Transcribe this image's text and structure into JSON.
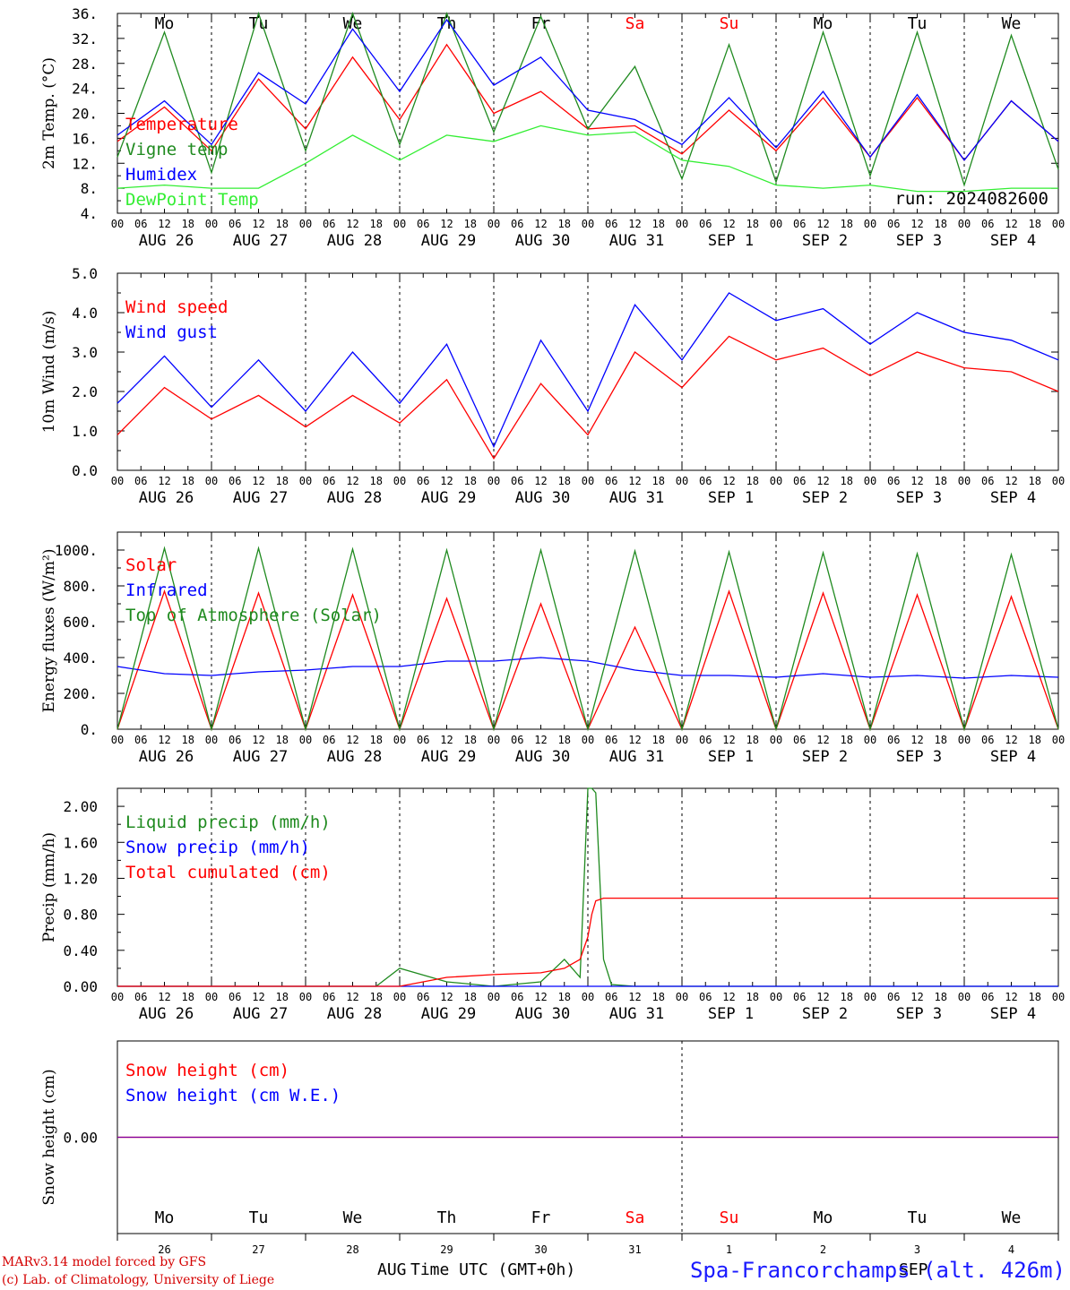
{
  "x_axis": {
    "hour_ticks": [
      "00",
      "06",
      "12",
      "18"
    ],
    "final_tick": "00",
    "date_labels": [
      "AUG 26",
      "AUG 27",
      "AUG 28",
      "AUG 29",
      "AUG 30",
      "AUG 31",
      "SEP  1",
      "SEP  2",
      "SEP  3",
      "SEP  4"
    ],
    "weekdays": [
      "Mo",
      "Tu",
      "We",
      "Th",
      "Fr",
      "Sa",
      "Su",
      "Mo",
      "Tu",
      "We"
    ],
    "weekday_colors": [
      "#000000",
      "#000000",
      "#000000",
      "#000000",
      "#000000",
      "#ff0000",
      "#ff0000",
      "#000000",
      "#000000",
      "#000000"
    ],
    "day_numbers": [
      "26",
      "27",
      "28",
      "29",
      "30",
      "31",
      "1",
      "2",
      "3",
      "4"
    ],
    "month_marks": [
      "AUG",
      "SEP"
    ],
    "title": "Time UTC (GMT+0h)"
  },
  "footer": {
    "model_line": "MARv3.14 model forced by GFS",
    "lab_line": "(c) Lab. of Climatology, University of Liege",
    "station": "Spa-Francorchamps (alt. 426m)"
  },
  "colors": {
    "red": "#ff0000",
    "green": "#1f8a1f",
    "blue": "#0000ff",
    "lightgreen": "#33ee33",
    "purple": "#8000a0"
  },
  "chart_data": [
    {
      "type": "line",
      "ylabel": "2m Temp. (°C)",
      "ylim": [
        4,
        36
      ],
      "yticks": [
        "4.",
        "8.",
        "12.",
        "16.",
        "20.",
        "24.",
        "28.",
        "32.",
        "36."
      ],
      "run_label": "run: 2024082600",
      "x_hours": [
        0,
        12,
        24,
        36,
        48,
        60,
        72,
        84,
        96,
        108,
        120,
        132,
        144,
        156,
        168,
        180,
        192,
        204,
        216,
        228,
        240
      ],
      "series": [
        {
          "name": "Temperature",
          "color": "#ff0000",
          "values": [
            15.5,
            21,
            14,
            25.5,
            17.5,
            29,
            19,
            31,
            20,
            23.5,
            17.5,
            18,
            13.5,
            20.5,
            14,
            22.5,
            13,
            22.5,
            12.5,
            22,
            15.5
          ]
        },
        {
          "name": "Vigne temp",
          "color": "#1f8a1f",
          "values": [
            13,
            33,
            10.5,
            36,
            14,
            36,
            15,
            36,
            17,
            35.5,
            17.5,
            27.5,
            9.5,
            31,
            9,
            33,
            10,
            33,
            8.5,
            32.5,
            11
          ]
        },
        {
          "name": "Humidex",
          "color": "#0000ff",
          "values": [
            16.5,
            22,
            15,
            26.5,
            21.5,
            33.5,
            23.5,
            35,
            24.5,
            29,
            20.5,
            19,
            15,
            22.5,
            14.5,
            23.5,
            13,
            23,
            12.5,
            22,
            15.5
          ]
        },
        {
          "name": "DewPoint Temp",
          "color": "#33ee33",
          "values": [
            8,
            8.5,
            8,
            8,
            12,
            16.5,
            12.5,
            16.5,
            15.5,
            18,
            16.5,
            17,
            12.5,
            11.5,
            8.5,
            8,
            8.5,
            7.5,
            7.5,
            8,
            8
          ]
        }
      ]
    },
    {
      "type": "line",
      "ylabel": "10m Wind (m/s)",
      "ylim": [
        0,
        5
      ],
      "yticks": [
        "0.0",
        "1.0",
        "2.0",
        "3.0",
        "4.0",
        "5.0"
      ],
      "x_hours": [
        0,
        12,
        24,
        36,
        48,
        60,
        72,
        84,
        96,
        108,
        120,
        132,
        144,
        156,
        168,
        180,
        192,
        204,
        216,
        228,
        240
      ],
      "series": [
        {
          "name": "Wind speed",
          "color": "#ff0000",
          "values": [
            0.9,
            2.1,
            1.3,
            1.9,
            1.1,
            1.9,
            1.2,
            2.3,
            0.3,
            2.2,
            0.9,
            3.0,
            2.1,
            3.4,
            2.8,
            3.1,
            2.4,
            3.0,
            2.6,
            2.5,
            2.0
          ]
        },
        {
          "name": "Wind gust",
          "color": "#0000ff",
          "values": [
            1.7,
            2.9,
            1.6,
            2.8,
            1.5,
            3.0,
            1.7,
            3.2,
            0.6,
            3.3,
            1.5,
            4.2,
            2.8,
            4.5,
            3.8,
            4.1,
            3.2,
            4.0,
            3.5,
            3.3,
            2.8
          ]
        }
      ]
    },
    {
      "type": "line",
      "ylabel": "Energy fluxes (W/m²)",
      "ylim": [
        0,
        1100
      ],
      "yticks": [
        "0.",
        "200.",
        "400.",
        "600.",
        "800.",
        "1000."
      ],
      "x_hours": [
        0,
        12,
        24,
        36,
        48,
        60,
        72,
        84,
        96,
        108,
        120,
        132,
        144,
        156,
        168,
        180,
        192,
        204,
        216,
        228,
        240
      ],
      "series": [
        {
          "name": "Solar",
          "color": "#ff0000",
          "values": [
            0,
            770,
            0,
            760,
            0,
            750,
            0,
            730,
            0,
            700,
            0,
            570,
            0,
            770,
            0,
            760,
            0,
            750,
            0,
            740,
            0
          ]
        },
        {
          "name": "Infrared",
          "color": "#0000ff",
          "values": [
            350,
            310,
            300,
            320,
            330,
            350,
            350,
            380,
            380,
            400,
            380,
            330,
            300,
            300,
            290,
            310,
            290,
            300,
            285,
            300,
            290
          ]
        },
        {
          "name": "Top of Atmosphere (Solar)",
          "color": "#1f8a1f",
          "values": [
            0,
            1010,
            0,
            1010,
            0,
            1005,
            0,
            1000,
            0,
            1000,
            0,
            995,
            0,
            990,
            0,
            985,
            0,
            980,
            0,
            975,
            0
          ]
        }
      ]
    },
    {
      "type": "line",
      "ylabel": "Precip (mm/h)",
      "ylim": [
        0,
        2.2
      ],
      "yticks": [
        "0.00",
        "0.40",
        "0.80",
        "1.20",
        "1.60",
        "2.00"
      ],
      "x_hours": [
        0,
        24,
        48,
        66,
        72,
        84,
        96,
        108,
        114,
        118,
        120,
        121,
        122,
        124,
        126,
        132,
        144,
        168,
        192,
        216,
        240
      ],
      "series": [
        {
          "name": "Liquid precip (mm/h)",
          "color": "#1f8a1f",
          "values": [
            0,
            0,
            0,
            0,
            0.2,
            0.05,
            0,
            0.05,
            0.3,
            0.1,
            2.2,
            2.2,
            2.15,
            0.3,
            0.02,
            0,
            0,
            0,
            0,
            0,
            0
          ]
        },
        {
          "name": "Snow precip (mm/h)",
          "color": "#0000ff",
          "values": [
            0,
            0,
            0,
            0,
            0,
            0,
            0,
            0,
            0,
            0,
            0,
            0,
            0,
            0,
            0,
            0,
            0,
            0,
            0,
            0,
            0
          ]
        },
        {
          "name": "Total cumulated (cm)",
          "color": "#ff0000",
          "values": [
            0,
            0,
            0,
            0,
            0,
            0.1,
            0.13,
            0.15,
            0.2,
            0.3,
            0.55,
            0.8,
            0.95,
            0.98,
            0.98,
            0.98,
            0.98,
            0.98,
            0.98,
            0.98,
            0.98
          ]
        }
      ]
    },
    {
      "type": "line",
      "ylabel": "Snow height (cm)",
      "ylim": [
        -1,
        1
      ],
      "yticks": [
        "0.00"
      ],
      "x_hours": [
        0,
        240
      ],
      "series": [
        {
          "name": "Snow height (cm)",
          "color": "#ff0000",
          "values": [
            0,
            0
          ]
        },
        {
          "name": "Snow height (cm W.E.)",
          "color": "#0000ff",
          "values": [
            0,
            0
          ]
        }
      ]
    }
  ]
}
